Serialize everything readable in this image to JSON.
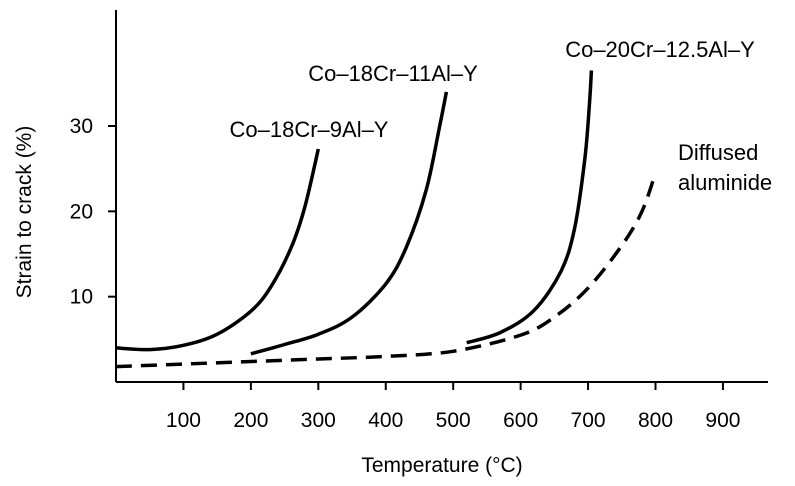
{
  "chart_data": {
    "type": "line",
    "xlabel": "Temperature (°C)",
    "ylabel": "Strain to crack (%)",
    "xlim": [
      0,
      960
    ],
    "ylim": [
      0,
      40
    ],
    "x_ticks": [
      100,
      200,
      300,
      400,
      500,
      600,
      700,
      800,
      900
    ],
    "y_ticks": [
      10,
      20,
      30
    ],
    "grid": false,
    "legend": "none",
    "series": [
      {
        "name": "Co–18Cr–9Al–Y",
        "style": "solid",
        "x": [
          0,
          50,
          100,
          150,
          200,
          230,
          260,
          280,
          300
        ],
        "y": [
          4.0,
          3.8,
          4.3,
          5.6,
          8.3,
          11.2,
          15.8,
          20.5,
          27.3
        ]
      },
      {
        "name": "Co–18Cr–11Al–Y",
        "style": "solid",
        "x": [
          200,
          250,
          300,
          350,
          400,
          430,
          460,
          480,
          490
        ],
        "y": [
          3.3,
          4.4,
          5.6,
          7.6,
          11.5,
          15.7,
          22.5,
          30.0,
          34.0
        ]
      },
      {
        "name": "Co–20Cr–12.5Al–Y",
        "style": "solid",
        "x": [
          520,
          570,
          620,
          660,
          680,
          695,
          702,
          705
        ],
        "y": [
          4.6,
          5.8,
          8.4,
          13.0,
          18.0,
          26.0,
          32.5,
          36.5
        ]
      },
      {
        "name": "Diffused aluminide",
        "style": "dashed",
        "x": [
          0,
          100,
          200,
          300,
          400,
          500,
          600,
          650,
          700,
          750,
          780,
          800
        ],
        "y": [
          1.8,
          2.1,
          2.4,
          2.7,
          3.0,
          3.6,
          5.5,
          7.6,
          11.0,
          16.0,
          20.0,
          24.5
        ]
      }
    ],
    "labels": [
      {
        "series": 0,
        "text": "Co–18Cr–9Al–Y"
      },
      {
        "series": 1,
        "text": "Co–18Cr–11Al–Y"
      },
      {
        "series": 2,
        "text": "Co–20Cr–12.5Al–Y"
      },
      {
        "series": 3,
        "lines": [
          "Diffused",
          "aluminide"
        ]
      }
    ]
  }
}
